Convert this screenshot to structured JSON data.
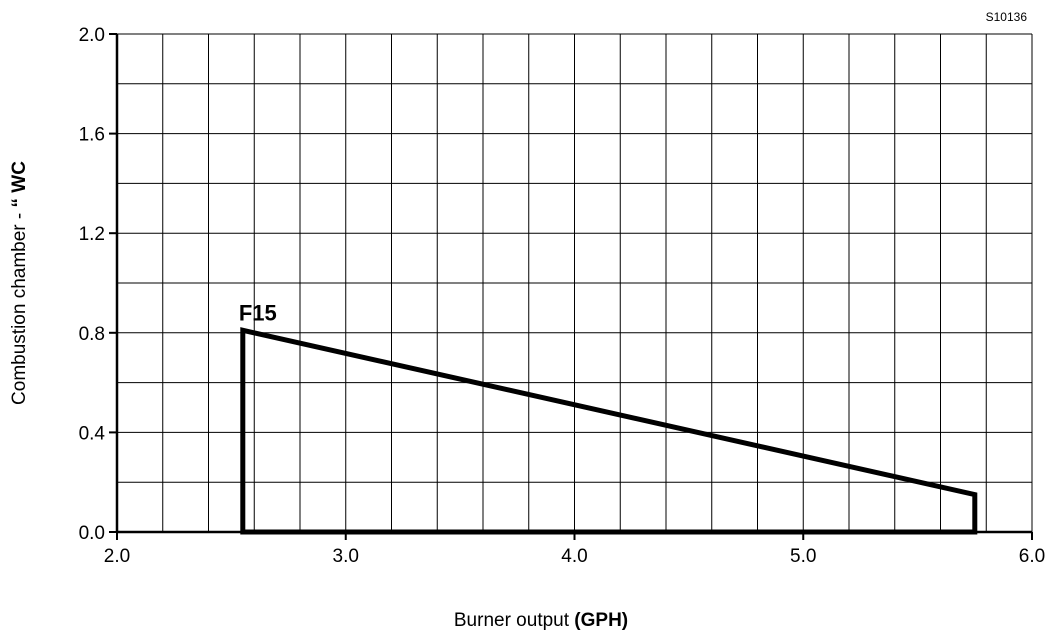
{
  "chart_data": {
    "type": "area",
    "code": "S10136",
    "xlabel": "Burner output ",
    "xlabel_bold": "(GPH)",
    "ylabel": "Combustion chamber - ",
    "ylabel_bold": "“ WC",
    "xlim": [
      2.0,
      6.0
    ],
    "ylim": [
      0.0,
      2.0
    ],
    "x_ticks": [
      "2.0",
      "3.0",
      "4.0",
      "5.0",
      "6.0"
    ],
    "y_ticks": [
      "0.0",
      "0.4",
      "0.8",
      "1.2",
      "1.6",
      "2.0"
    ],
    "x_tick_values": [
      2.0,
      3.0,
      4.0,
      5.0,
      6.0
    ],
    "y_tick_values": [
      0.0,
      0.4,
      0.8,
      1.2,
      1.6,
      2.0
    ],
    "x_minor_step": 0.2,
    "y_minor_step": 0.2,
    "grid": true,
    "series": [
      {
        "name": "F15",
        "points": [
          [
            2.55,
            0.0
          ],
          [
            2.55,
            0.81
          ],
          [
            5.75,
            0.15
          ],
          [
            5.75,
            0.0
          ]
        ]
      }
    ]
  }
}
